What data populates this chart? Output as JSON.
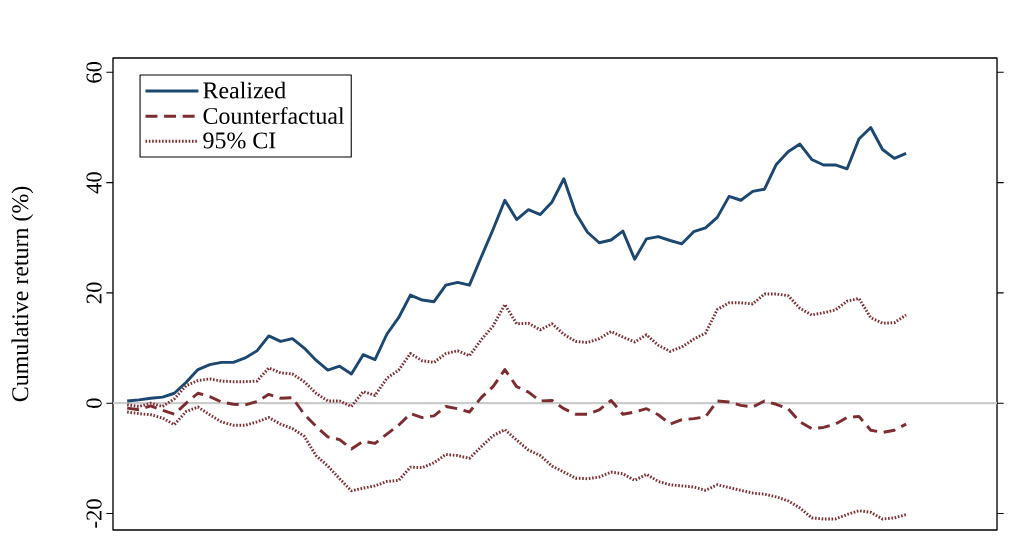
{
  "chart_data": {
    "type": "line",
    "ylabel": "Cumulative return (%)",
    "categories": [
      null,
      null,
      null,
      null,
      null,
      null,
      null,
      null,
      null,
      null,
      null,
      null,
      null,
      null,
      null,
      null,
      null,
      null,
      null,
      null,
      null,
      null,
      null,
      null,
      null,
      null,
      null,
      null,
      null,
      null,
      null,
      null,
      null,
      null,
      null,
      null,
      null,
      null,
      null,
      null,
      null,
      null,
      null,
      null,
      null,
      null,
      null,
      null,
      null,
      null,
      null,
      null,
      null,
      null,
      null,
      null,
      null,
      null,
      null,
      null,
      null,
      null,
      null,
      null,
      null,
      null,
      null
    ],
    "series": [
      {
        "name": "Realized",
        "color": "#1b4770",
        "line_style": "solid",
        "values": [
          0.4,
          0.6,
          0.9,
          1.1,
          1.8,
          3.8,
          6.1,
          7.0,
          7.4,
          7.4,
          8.2,
          9.5,
          12.2,
          11.2,
          11.7,
          10.0,
          7.8,
          6.0,
          6.7,
          5.3,
          8.8,
          7.9,
          12.5,
          15.5,
          19.6,
          18.7,
          18.4,
          21.4,
          21.9,
          21.4,
          26.5,
          31.5,
          36.8,
          33.3,
          35.1,
          34.2,
          36.5,
          40.7,
          34.5,
          31.0,
          29.1,
          29.6,
          31.2,
          26.1,
          29.8,
          30.2,
          29.5,
          28.9,
          31.1,
          31.8,
          33.7,
          37.5,
          36.8,
          38.4,
          38.8,
          43.3,
          45.6,
          47.0,
          44.2,
          43.2,
          43.2,
          42.5,
          47.9,
          50.0,
          46.0,
          44.4,
          45.3
        ]
      },
      {
        "name": "Counterfactual",
        "color": "#7d2c30",
        "line_style": "dashed",
        "values": [
          -0.9,
          -1.2,
          -0.5,
          -1.3,
          -2.0,
          0.0,
          1.8,
          1.2,
          0.2,
          -0.2,
          -0.3,
          0.3,
          1.6,
          0.9,
          1.0,
          -2.0,
          -4.2,
          -6.1,
          -6.6,
          -8.3,
          -6.9,
          -7.3,
          -5.6,
          -4.0,
          -1.9,
          -2.6,
          -2.3,
          -0.6,
          -1.0,
          -1.6,
          1.0,
          3.0,
          6.1,
          3.0,
          2.0,
          0.4,
          0.5,
          -1.0,
          -2.0,
          -2.0,
          -1.2,
          0.5,
          -2.0,
          -1.6,
          -1.0,
          -2.1,
          -3.8,
          -3.0,
          -2.8,
          -2.5,
          0.4,
          0.2,
          -0.4,
          -0.7,
          0.4,
          -0.2,
          -1.0,
          -3.4,
          -4.6,
          -4.4,
          -3.8,
          -2.6,
          -2.4,
          -4.9,
          -5.3,
          -4.9,
          -3.8
        ]
      },
      {
        "name": "95% CI",
        "color": "#7d2c30",
        "line_style": "dotted",
        "values": [
          -0.3,
          -0.6,
          0.0,
          -0.6,
          0.8,
          3.2,
          4.1,
          4.4,
          4.0,
          3.9,
          3.9,
          4.0,
          6.4,
          5.5,
          5.3,
          3.9,
          1.8,
          0.4,
          0.4,
          -0.6,
          2.1,
          1.4,
          4.5,
          6.0,
          9.0,
          7.7,
          7.4,
          9.0,
          9.5,
          8.6,
          11.5,
          14.0,
          17.9,
          14.4,
          14.5,
          13.3,
          14.4,
          12.5,
          11.2,
          11.0,
          11.7,
          13.0,
          12.0,
          11.1,
          12.4,
          10.5,
          9.4,
          10.2,
          11.6,
          12.7,
          17.0,
          18.2,
          18.2,
          18.0,
          19.8,
          19.8,
          19.5,
          17.2,
          16.0,
          16.4,
          16.9,
          18.5,
          19.0,
          15.5,
          14.5,
          14.6,
          16.0
        ]
      },
      {
        "color": "#7d2c30",
        "line_style": "dotted",
        "values": [
          -1.6,
          -1.9,
          -2.1,
          -2.7,
          -3.9,
          -1.5,
          -0.7,
          -2.1,
          -3.4,
          -4.0,
          -4.0,
          -3.4,
          -2.6,
          -3.8,
          -4.6,
          -6.0,
          -9.5,
          -11.4,
          -13.7,
          -15.9,
          -15.4,
          -15.0,
          -14.2,
          -14.0,
          -11.6,
          -11.7,
          -10.8,
          -9.3,
          -9.5,
          -10.0,
          -7.9,
          -5.9,
          -4.8,
          -6.7,
          -8.5,
          -9.5,
          -11.4,
          -12.5,
          -13.6,
          -13.7,
          -13.4,
          -12.5,
          -12.8,
          -14.0,
          -12.9,
          -14.2,
          -14.8,
          -15.0,
          -15.2,
          -15.8,
          -14.8,
          -15.3,
          -15.8,
          -16.3,
          -16.5,
          -17.0,
          -17.7,
          -19.0,
          -20.8,
          -21.0,
          -21.0,
          -20.2,
          -19.5,
          -19.8,
          -21.0,
          -20.8,
          -20.2
        ]
      }
    ],
    "ylim": [
      -23,
      62.6
    ],
    "yticks": [
      -20,
      0,
      20,
      40,
      60
    ],
    "ref_lines": [
      {
        "axis": "y",
        "value": 0,
        "color": "#cccccc"
      }
    ],
    "tick_labels": "y",
    "legend": "top left"
  }
}
